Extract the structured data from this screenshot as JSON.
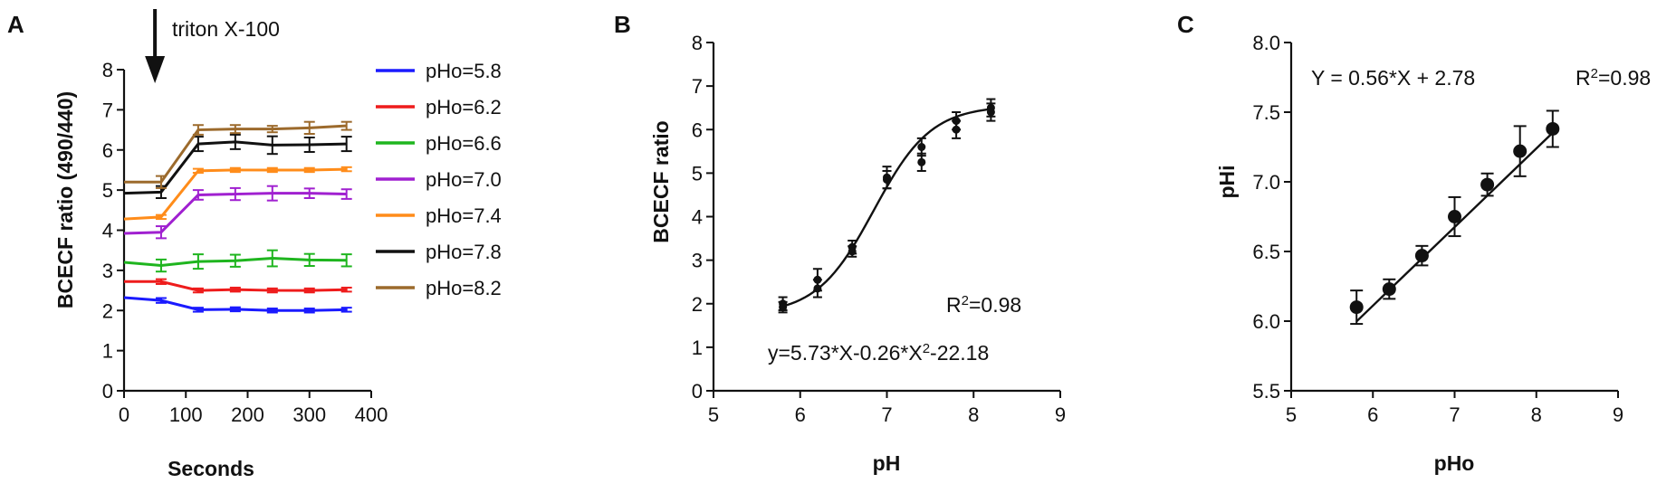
{
  "chart_data": [
    {
      "panel": "A",
      "type": "line",
      "title": "",
      "xlabel": "Seconds",
      "ylabel": "BCECF ratio (490/440)",
      "xlim": [
        0,
        400
      ],
      "ylim": [
        0,
        8
      ],
      "xticks": [
        0,
        100,
        200,
        300,
        400
      ],
      "yticks": [
        0,
        1,
        2,
        3,
        4,
        5,
        6,
        7,
        8
      ],
      "annotation": "triton X-100",
      "annotation_x": 50,
      "legend_position": "right",
      "x": [
        0,
        60,
        120,
        180,
        240,
        300,
        360
      ],
      "series": [
        {
          "name": "pHo=5.8",
          "color": "#1a1aff",
          "values": [
            2.32,
            2.25,
            2.02,
            2.03,
            2.0,
            2.0,
            2.02
          ],
          "err": [
            0.06,
            0.06,
            0.05,
            0.05,
            0.05,
            0.05,
            0.05
          ]
        },
        {
          "name": "pHo=6.2",
          "color": "#ee1c1c",
          "values": [
            2.72,
            2.72,
            2.5,
            2.52,
            2.5,
            2.5,
            2.52
          ],
          "err": [
            0.06,
            0.06,
            0.05,
            0.05,
            0.05,
            0.05,
            0.05
          ]
        },
        {
          "name": "pHo=6.6",
          "color": "#1fb51f",
          "values": [
            3.2,
            3.12,
            3.22,
            3.24,
            3.3,
            3.26,
            3.25
          ],
          "err": [
            0.08,
            0.15,
            0.18,
            0.15,
            0.2,
            0.15,
            0.15
          ]
        },
        {
          "name": "pHo=7.0",
          "color": "#a020d0",
          "values": [
            3.92,
            3.95,
            4.88,
            4.9,
            4.92,
            4.92,
            4.9
          ],
          "err": [
            0.08,
            0.15,
            0.12,
            0.15,
            0.18,
            0.12,
            0.12
          ]
        },
        {
          "name": "pHo=7.4",
          "color": "#ff8c1a",
          "values": [
            4.28,
            4.33,
            5.48,
            5.5,
            5.5,
            5.5,
            5.52
          ],
          "err": [
            0.05,
            0.05,
            0.05,
            0.05,
            0.05,
            0.05,
            0.05
          ]
        },
        {
          "name": "pHo=7.8",
          "color": "#111111",
          "values": [
            4.92,
            4.95,
            6.15,
            6.2,
            6.12,
            6.13,
            6.15
          ],
          "err": [
            0.1,
            0.15,
            0.18,
            0.18,
            0.22,
            0.18,
            0.18
          ]
        },
        {
          "name": "pHo=8.2",
          "color": "#9c6a2c",
          "values": [
            5.2,
            5.2,
            6.5,
            6.52,
            6.52,
            6.55,
            6.6
          ],
          "err": [
            0.1,
            0.15,
            0.12,
            0.1,
            0.08,
            0.15,
            0.1
          ]
        }
      ]
    },
    {
      "panel": "B",
      "type": "scatter",
      "title": "",
      "xlabel": "pH",
      "ylabel": "BCECF ratio",
      "xlim": [
        5,
        9
      ],
      "ylim": [
        0,
        8
      ],
      "xticks": [
        5,
        6,
        7,
        8,
        9
      ],
      "yticks": [
        0,
        1,
        2,
        3,
        4,
        5,
        6,
        7,
        8
      ],
      "annotations": [
        "R²=0.98",
        "y=5.73*X-0.26*X²-22.18"
      ],
      "fit": "sigmoidal",
      "points": [
        {
          "x": 5.8,
          "y": 2.0,
          "err": 0.15
        },
        {
          "x": 5.8,
          "y": 1.92,
          "err": 0.12
        },
        {
          "x": 6.2,
          "y": 2.35,
          "err": 0.2
        },
        {
          "x": 6.2,
          "y": 2.55,
          "err": 0.25
        },
        {
          "x": 6.6,
          "y": 3.3,
          "err": 0.15
        },
        {
          "x": 6.6,
          "y": 3.2,
          "err": 0.12
        },
        {
          "x": 7.0,
          "y": 4.85,
          "err": 0.2
        },
        {
          "x": 7.0,
          "y": 4.9,
          "err": 0.25
        },
        {
          "x": 7.4,
          "y": 5.6,
          "err": 0.2
        },
        {
          "x": 7.4,
          "y": 5.25,
          "err": 0.2
        },
        {
          "x": 7.8,
          "y": 6.2,
          "err": 0.2
        },
        {
          "x": 7.8,
          "y": 6.0,
          "err": 0.2
        },
        {
          "x": 8.2,
          "y": 6.5,
          "err": 0.2
        },
        {
          "x": 8.2,
          "y": 6.4,
          "err": 0.2
        }
      ]
    },
    {
      "panel": "C",
      "type": "scatter",
      "title": "",
      "xlabel": "pHo",
      "ylabel": "pHi",
      "xlim": [
        5,
        9
      ],
      "ylim": [
        5.5,
        8.0
      ],
      "xticks": [
        5,
        6,
        7,
        8,
        9
      ],
      "yticks": [
        5.5,
        6.0,
        6.5,
        7.0,
        7.5,
        8.0
      ],
      "annotations": [
        "Y = 0.56*X + 2.78",
        "R²=0.98"
      ],
      "fit": "linear",
      "points": [
        {
          "x": 5.8,
          "y": 6.1,
          "err": 0.12
        },
        {
          "x": 6.2,
          "y": 6.23,
          "err": 0.07
        },
        {
          "x": 6.6,
          "y": 6.47,
          "err": 0.07
        },
        {
          "x": 7.0,
          "y": 6.75,
          "err": 0.14
        },
        {
          "x": 7.4,
          "y": 6.98,
          "err": 0.08
        },
        {
          "x": 7.8,
          "y": 7.22,
          "err": 0.18
        },
        {
          "x": 8.2,
          "y": 7.38,
          "err": 0.13
        }
      ]
    }
  ]
}
